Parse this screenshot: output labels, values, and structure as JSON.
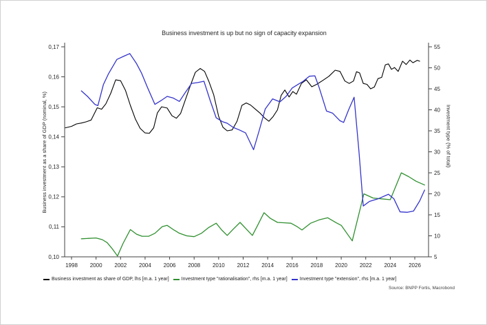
{
  "title": "Business investment is up but no sign of capacity expansion",
  "source": "Source: BNPP Fortis, Macrobond",
  "colors": {
    "gdp_share_line": "#000000",
    "rationalisation_line": "#2f8f2f",
    "extension_line": "#3333cc",
    "axis": "#404040",
    "text": "#262626"
  },
  "chart_data": {
    "type": "line",
    "title": "Business investment is up but no sign of capacity expansion",
    "grid": false,
    "legend_position": "bottom",
    "x_range": [
      1997.4,
      2027.1
    ],
    "x_ticks": [
      [
        "1998",
        "1998"
      ],
      [
        "2000",
        "2000"
      ],
      [
        "2002",
        "2002"
      ],
      [
        "2004",
        "2004"
      ],
      [
        "2006",
        "2006"
      ],
      [
        "2008",
        "2008"
      ],
      [
        "2010",
        "2010"
      ],
      [
        "2012",
        "2012"
      ],
      [
        "2014",
        "2014"
      ],
      [
        "2016",
        "2016"
      ],
      [
        "2018",
        "2018"
      ],
      [
        "2020",
        "2020"
      ],
      [
        "2022",
        "2022"
      ],
      [
        "2024",
        "2024"
      ],
      [
        "2026",
        "2026"
      ]
    ],
    "left_axis": {
      "label": "Business investment as a share of GDP (nominal, %)",
      "range": [
        0.1,
        0.17
      ],
      "ticks": [
        [
          0.17,
          "0,17"
        ],
        [
          0.16,
          "0,16"
        ],
        [
          0.15,
          "0,15"
        ],
        [
          0.14,
          "0,14"
        ],
        [
          0.13,
          "0,13"
        ],
        [
          0.12,
          "0,12"
        ],
        [
          0.11,
          "0,11"
        ],
        [
          0.1,
          "0,10"
        ]
      ]
    },
    "right_axis": {
      "label": "Investment type (% of total)",
      "range": [
        5,
        55
      ],
      "ticks": [
        [
          55,
          "55"
        ],
        [
          50,
          "50"
        ],
        [
          45,
          "45"
        ],
        [
          40,
          "40"
        ],
        [
          35,
          "35"
        ],
        [
          30,
          "30"
        ],
        [
          25,
          "25"
        ],
        [
          20,
          "20"
        ],
        [
          15,
          "15"
        ],
        [
          10,
          "10"
        ],
        [
          5,
          "5"
        ]
      ]
    },
    "series": [
      {
        "name": "Business investment as share of GDP, lhs [m.a. 1 year]",
        "axis": "left",
        "color": "#000000",
        "width": 1.1,
        "points": [
          [
            1997.5,
            0.143
          ],
          [
            1998.0,
            0.1435
          ],
          [
            1998.4,
            0.1443
          ],
          [
            1998.8,
            0.1446
          ],
          [
            1999.2,
            0.145
          ],
          [
            1999.6,
            0.1456
          ],
          [
            2000.1,
            0.1497
          ],
          [
            2000.45,
            0.1492
          ],
          [
            2000.8,
            0.151
          ],
          [
            2001.2,
            0.1545
          ],
          [
            2001.6,
            0.159
          ],
          [
            2002.0,
            0.1587
          ],
          [
            2002.4,
            0.1555
          ],
          [
            2002.8,
            0.1505
          ],
          [
            2003.2,
            0.146
          ],
          [
            2003.6,
            0.1428
          ],
          [
            2004.0,
            0.1413
          ],
          [
            2004.35,
            0.1412
          ],
          [
            2004.7,
            0.143
          ],
          [
            2005.0,
            0.148
          ],
          [
            2005.35,
            0.15
          ],
          [
            2005.8,
            0.1496
          ],
          [
            2006.2,
            0.147
          ],
          [
            2006.55,
            0.1462
          ],
          [
            2006.9,
            0.1478
          ],
          [
            2007.3,
            0.1525
          ],
          [
            2007.7,
            0.1572
          ],
          [
            2008.1,
            0.1615
          ],
          [
            2008.5,
            0.1628
          ],
          [
            2008.85,
            0.1618
          ],
          [
            2009.2,
            0.1585
          ],
          [
            2009.6,
            0.154
          ],
          [
            2010.0,
            0.1468
          ],
          [
            2010.35,
            0.1432
          ],
          [
            2010.7,
            0.142
          ],
          [
            2011.1,
            0.1423
          ],
          [
            2011.5,
            0.1452
          ],
          [
            2011.9,
            0.1505
          ],
          [
            2012.25,
            0.1513
          ],
          [
            2012.6,
            0.1506
          ],
          [
            2013.0,
            0.1492
          ],
          [
            2013.4,
            0.1478
          ],
          [
            2013.75,
            0.1463
          ],
          [
            2014.1,
            0.1452
          ],
          [
            2014.45,
            0.1468
          ],
          [
            2014.8,
            0.149
          ],
          [
            2015.1,
            0.1538
          ],
          [
            2015.4,
            0.1556
          ],
          [
            2015.75,
            0.1533
          ],
          [
            2016.05,
            0.1551
          ],
          [
            2016.35,
            0.1542
          ],
          [
            2016.75,
            0.1578
          ],
          [
            2017.15,
            0.159
          ],
          [
            2017.6,
            0.1567
          ],
          [
            2018.0,
            0.1575
          ],
          [
            2018.5,
            0.1588
          ],
          [
            2019.0,
            0.1602
          ],
          [
            2019.5,
            0.1622
          ],
          [
            2019.9,
            0.1618
          ],
          [
            2020.3,
            0.1586
          ],
          [
            2020.65,
            0.1578
          ],
          [
            2021.0,
            0.1586
          ],
          [
            2021.25,
            0.1617
          ],
          [
            2021.5,
            0.1613
          ],
          [
            2021.8,
            0.1578
          ],
          [
            2022.1,
            0.1575
          ],
          [
            2022.4,
            0.156
          ],
          [
            2022.7,
            0.1566
          ],
          [
            2023.0,
            0.1594
          ],
          [
            2023.3,
            0.1598
          ],
          [
            2023.6,
            0.164
          ],
          [
            2023.85,
            0.1643
          ],
          [
            2024.1,
            0.1625
          ],
          [
            2024.35,
            0.1631
          ],
          [
            2024.65,
            0.1618
          ],
          [
            2025.0,
            0.1652
          ],
          [
            2025.3,
            0.1641
          ],
          [
            2025.6,
            0.1656
          ],
          [
            2025.85,
            0.1647
          ],
          [
            2026.2,
            0.1655
          ],
          [
            2026.4,
            0.1652
          ]
        ]
      },
      {
        "name": "Investment type \"rationalisation\", rhs [m.a. 1 year]",
        "axis": "right",
        "color": "#2f8f2f",
        "width": 1.3,
        "points": [
          [
            1998.8,
            9.3
          ],
          [
            1999.4,
            9.4
          ],
          [
            2000.0,
            9.5
          ],
          [
            2000.5,
            9.1
          ],
          [
            2000.9,
            8.4
          ],
          [
            2001.3,
            7.0
          ],
          [
            2001.75,
            5.2
          ],
          [
            2002.2,
            8.2
          ],
          [
            2002.8,
            11.5
          ],
          [
            2003.3,
            10.4
          ],
          [
            2003.75,
            9.9
          ],
          [
            2004.3,
            9.9
          ],
          [
            2004.8,
            10.6
          ],
          [
            2005.4,
            12.2
          ],
          [
            2005.8,
            12.5
          ],
          [
            2006.3,
            11.5
          ],
          [
            2006.8,
            10.6
          ],
          [
            2007.4,
            10.0
          ],
          [
            2008.0,
            9.8
          ],
          [
            2008.6,
            10.6
          ],
          [
            2009.2,
            12.0
          ],
          [
            2009.8,
            13.0
          ],
          [
            2010.25,
            11.4
          ],
          [
            2010.7,
            10.1
          ],
          [
            2011.2,
            11.6
          ],
          [
            2011.75,
            13.2
          ],
          [
            2012.3,
            11.5
          ],
          [
            2012.75,
            10.1
          ],
          [
            2013.2,
            12.6
          ],
          [
            2013.7,
            15.5
          ],
          [
            2014.2,
            14.2
          ],
          [
            2014.8,
            13.2
          ],
          [
            2015.4,
            13.1
          ],
          [
            2015.9,
            13.0
          ],
          [
            2016.4,
            12.2
          ],
          [
            2016.8,
            11.4
          ],
          [
            2017.5,
            13.0
          ],
          [
            2018.2,
            13.8
          ],
          [
            2018.9,
            14.3
          ],
          [
            2019.6,
            13.1
          ],
          [
            2020.0,
            12.5
          ],
          [
            2020.9,
            8.8
          ],
          [
            2021.85,
            20.0
          ],
          [
            2022.6,
            19.0
          ],
          [
            2023.3,
            18.8
          ],
          [
            2024.0,
            18.6
          ],
          [
            2024.9,
            25.0
          ],
          [
            2025.5,
            24.1
          ],
          [
            2026.1,
            23.0
          ],
          [
            2026.8,
            22.1
          ]
        ]
      },
      {
        "name": "Investment type \"extension\", rhs [m.a. 1 year]",
        "axis": "right",
        "color": "#3333cc",
        "width": 1.3,
        "points": [
          [
            1998.8,
            44.5
          ],
          [
            1999.3,
            43.2
          ],
          [
            1999.9,
            41.3
          ],
          [
            2000.15,
            41.0
          ],
          [
            2000.6,
            46.0
          ],
          [
            2001.0,
            48.5
          ],
          [
            2001.7,
            52.0
          ],
          [
            2002.3,
            52.8
          ],
          [
            2002.75,
            53.4
          ],
          [
            2003.3,
            51.0
          ],
          [
            2003.7,
            48.8
          ],
          [
            2004.2,
            45.3
          ],
          [
            2004.8,
            41.3
          ],
          [
            2005.3,
            42.2
          ],
          [
            2005.8,
            43.2
          ],
          [
            2006.3,
            42.8
          ],
          [
            2006.8,
            42.0
          ],
          [
            2007.3,
            44.2
          ],
          [
            2007.8,
            46.3
          ],
          [
            2008.3,
            46.5
          ],
          [
            2008.8,
            46.8
          ],
          [
            2009.3,
            42.3
          ],
          [
            2009.8,
            38.1
          ],
          [
            2010.3,
            37.2
          ],
          [
            2010.7,
            36.8
          ],
          [
            2011.2,
            35.8
          ],
          [
            2011.7,
            35.2
          ],
          [
            2012.2,
            34.5
          ],
          [
            2012.85,
            30.5
          ],
          [
            2013.3,
            35.0
          ],
          [
            2013.8,
            40.2
          ],
          [
            2014.4,
            42.6
          ],
          [
            2015.0,
            41.9
          ],
          [
            2015.5,
            43.2
          ],
          [
            2016.0,
            45.2
          ],
          [
            2016.5,
            46.1
          ],
          [
            2016.9,
            46.8
          ],
          [
            2017.4,
            48.0
          ],
          [
            2017.85,
            48.1
          ],
          [
            2018.2,
            45.3
          ],
          [
            2018.8,
            39.7
          ],
          [
            2019.3,
            39.2
          ],
          [
            2019.9,
            37.4
          ],
          [
            2020.2,
            37.0
          ],
          [
            2020.6,
            40.0
          ],
          [
            2021.05,
            43.0
          ],
          [
            2021.45,
            30.0
          ],
          [
            2021.8,
            17.1
          ],
          [
            2022.3,
            18.2
          ],
          [
            2023.0,
            18.8
          ],
          [
            2023.85,
            19.9
          ],
          [
            2024.3,
            18.8
          ],
          [
            2024.8,
            15.7
          ],
          [
            2025.4,
            15.6
          ],
          [
            2025.9,
            15.9
          ],
          [
            2026.4,
            18.3
          ],
          [
            2026.8,
            20.9
          ]
        ]
      }
    ]
  }
}
